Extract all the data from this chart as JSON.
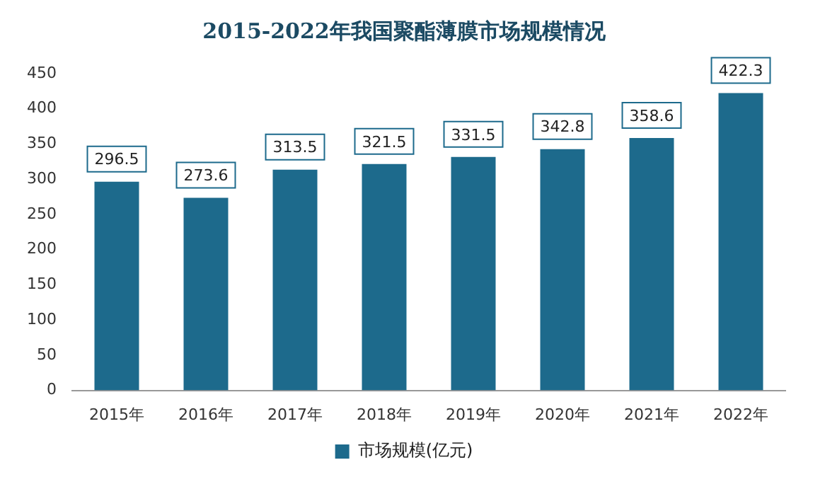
{
  "chart_data": {
    "type": "bar",
    "title": "2015-2022年我国聚酯薄膜市场规模情况",
    "categories": [
      "2015年",
      "2016年",
      "2017年",
      "2018年",
      "2019年",
      "2020年",
      "2021年",
      "2022年"
    ],
    "series": [
      {
        "name": "市场规模(亿元)",
        "color": "#1d6a8c",
        "values": [
          296.5,
          273.6,
          313.5,
          321.5,
          331.5,
          342.8,
          358.6,
          422.3
        ]
      }
    ],
    "ylim": [
      0,
      450
    ],
    "yticks": [
      0,
      50,
      100,
      150,
      200,
      250,
      300,
      350,
      400,
      450
    ],
    "grid": false,
    "legend": "bottom",
    "data_labels": true
  }
}
